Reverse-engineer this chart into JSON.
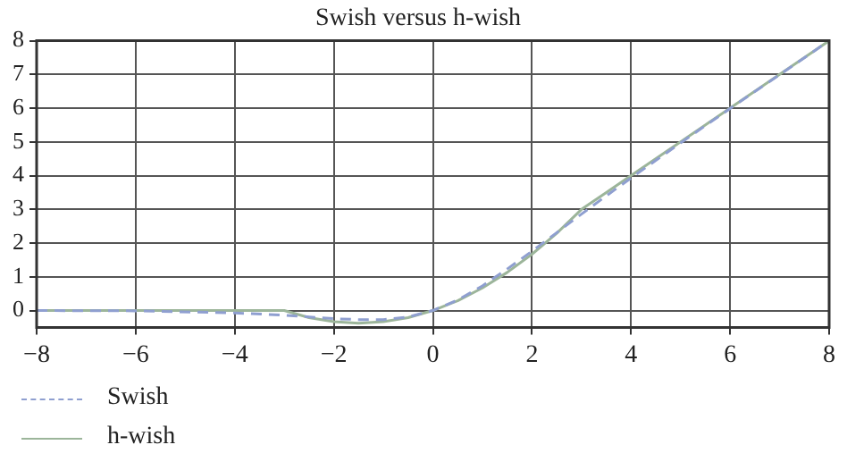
{
  "chart_data": {
    "type": "line",
    "title": "Swish versus h-wish",
    "x": [
      -8,
      -6,
      -4,
      -3,
      -2.5,
      -2,
      -1.5,
      -1,
      -0.5,
      0,
      0.5,
      1,
      1.5,
      2,
      2.5,
      3,
      3.5,
      4,
      5,
      6,
      7,
      8
    ],
    "series": [
      {
        "name": "Swish",
        "color": "#8f9fd0",
        "line_style": "dashed",
        "values": [
          0,
          -0.01,
          -0.07,
          -0.14,
          -0.19,
          -0.24,
          -0.27,
          -0.27,
          -0.19,
          0,
          0.31,
          0.73,
          1.23,
          1.76,
          2.31,
          2.86,
          3.4,
          3.93,
          4.97,
          5.99,
          6.99,
          8
        ]
      },
      {
        "name": "h-wish",
        "color": "#9cb59a",
        "line_style": "solid",
        "values": [
          0,
          0,
          0,
          0,
          -0.21,
          -0.33,
          -0.38,
          -0.33,
          -0.21,
          0,
          0.29,
          0.67,
          1.13,
          1.67,
          2.29,
          3,
          3.5,
          4,
          5,
          6,
          7,
          8
        ]
      }
    ],
    "xlim": [
      -8,
      8
    ],
    "xticks": [
      -8,
      -6,
      -4,
      -2,
      0,
      2,
      4,
      6,
      8
    ],
    "ylim": [
      -0.5,
      8
    ],
    "yticks": [
      0,
      1,
      2,
      3,
      4,
      5,
      6,
      7,
      8
    ],
    "grid": true,
    "legend": "bottom left",
    "marker": "none"
  }
}
